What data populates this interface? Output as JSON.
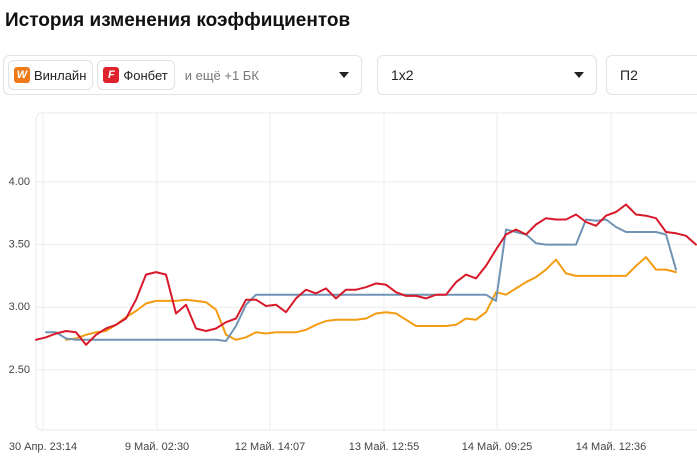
{
  "header": {
    "title": "История изменения коэффициентов"
  },
  "filters": {
    "bookmakers": [
      {
        "icon": "W",
        "name": "Винлайн"
      },
      {
        "icon": "F",
        "name": "Фонбет"
      }
    ],
    "more": "и ещё +1 БК",
    "market": "1х2",
    "outcome": "П2"
  },
  "chart_data": {
    "type": "line",
    "x": [
      0,
      1,
      2,
      3,
      4,
      5,
      6,
      7,
      8,
      9,
      10,
      11,
      12,
      13,
      14,
      15,
      16,
      17,
      18,
      19,
      20,
      21,
      22,
      23,
      24,
      25,
      26,
      27,
      28,
      29,
      30,
      31,
      32,
      33,
      34,
      35,
      36,
      37,
      38,
      39,
      40,
      41,
      42,
      43,
      44,
      45,
      46,
      47,
      48,
      49,
      50,
      51,
      52,
      53,
      54,
      55,
      56,
      57,
      58,
      59,
      60,
      61,
      62,
      63,
      64,
      65,
      66
    ],
    "xlim": [
      0,
      66
    ],
    "xticks": [
      {
        "value": 0.7,
        "label": "30 Апр. 23:14"
      },
      {
        "value": 12.1,
        "label": "9 Май. 02:30"
      },
      {
        "value": 23.4,
        "label": "12 Май. 14:07"
      },
      {
        "value": 34.8,
        "label": "13 Май. 12:55"
      },
      {
        "value": 46.1,
        "label": "14 Май. 09:25"
      },
      {
        "value": 57.5,
        "label": "14 Май. 12:36"
      }
    ],
    "ylim": [
      2.02,
      4.55
    ],
    "yticks": [
      {
        "value": 2.5,
        "label": "2.50"
      },
      {
        "value": 3,
        "label": "3.00"
      },
      {
        "value": 3.5,
        "label": "3.50"
      },
      {
        "value": 4,
        "label": "4.00"
      }
    ],
    "grid": true,
    "series": [
      {
        "color": "#d7192a",
        "values": [
          2.74,
          2.76,
          2.79,
          2.81,
          2.8,
          2.7,
          2.78,
          2.83,
          2.86,
          2.91,
          3.06,
          3.26,
          3.28,
          3.26,
          2.95,
          3.02,
          2.83,
          2.81,
          2.83,
          2.88,
          2.91,
          3.06,
          3.06,
          3.01,
          3.02,
          2.96,
          3.07,
          3.14,
          3.11,
          3.15,
          3.07,
          3.14,
          3.14,
          3.16,
          3.19,
          3.18,
          3.12,
          3.09,
          3.09,
          3.07,
          3.1,
          3.1,
          3.2,
          3.26,
          3.23,
          3.33,
          3.46,
          3.58,
          3.62,
          3.58,
          3.66,
          3.71,
          3.7,
          3.7,
          3.74,
          3.68,
          3.65,
          3.73,
          3.76,
          3.82,
          3.74,
          3.73,
          3.71,
          3.6,
          3.59,
          3.57,
          3.5
        ]
      },
      {
        "color": "#6f93b5",
        "values": [
          null,
          2.8,
          2.8,
          2.75,
          2.74,
          2.74,
          2.74,
          2.74,
          2.74,
          2.74,
          2.74,
          2.74,
          2.74,
          2.74,
          2.74,
          2.74,
          2.74,
          2.74,
          2.74,
          2.73,
          2.85,
          3.02,
          3.1,
          3.1,
          3.1,
          3.1,
          3.1,
          3.1,
          3.1,
          3.1,
          3.1,
          3.1,
          3.1,
          3.1,
          3.1,
          3.1,
          3.1,
          3.1,
          3.1,
          3.1,
          3.1,
          3.1,
          3.1,
          3.1,
          3.1,
          3.1,
          3.05,
          3.62,
          3.6,
          3.58,
          3.51,
          3.5,
          3.5,
          3.5,
          3.5,
          3.7,
          3.69,
          3.7,
          3.64,
          3.6,
          3.6,
          3.6,
          3.6,
          3.58,
          3.3,
          null,
          null
        ]
      },
      {
        "color": "#f39c12",
        "values": [
          null,
          null,
          null,
          2.74,
          2.75,
          2.78,
          2.8,
          2.81,
          2.86,
          2.92,
          2.97,
          3.03,
          3.05,
          3.05,
          3.05,
          3.06,
          3.05,
          3.04,
          2.98,
          2.78,
          2.74,
          2.76,
          2.8,
          2.79,
          2.8,
          2.8,
          2.8,
          2.82,
          2.86,
          2.89,
          2.9,
          2.9,
          2.9,
          2.91,
          2.95,
          2.96,
          2.95,
          2.9,
          2.85,
          2.85,
          2.85,
          2.85,
          2.86,
          2.91,
          2.9,
          2.96,
          3.12,
          3.1,
          3.15,
          3.2,
          3.24,
          3.3,
          3.38,
          3.27,
          3.25,
          3.25,
          3.25,
          3.25,
          3.25,
          3.25,
          3.33,
          3.4,
          3.3,
          3.3,
          3.28,
          null,
          null
        ]
      }
    ]
  }
}
